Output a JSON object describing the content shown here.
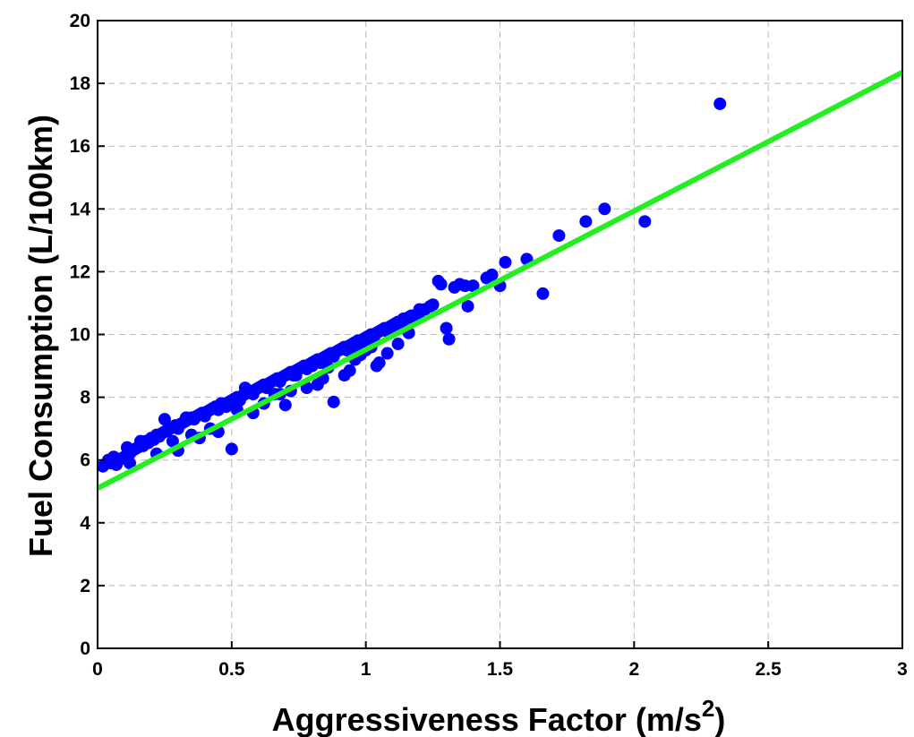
{
  "chart_data": {
    "type": "scatter",
    "title": "",
    "xlabel": "Aggressiveness Factor (m/s",
    "xlabel_superscript": "2",
    "xlabel_suffix": ")",
    "ylabel": "Fuel Consumption (L/100km)",
    "xlim": [
      0,
      3
    ],
    "ylim": [
      0,
      20
    ],
    "xticks": [
      "0",
      "0.5",
      "1",
      "1.5",
      "2",
      "2.5",
      "3"
    ],
    "yticks": [
      "0",
      "2",
      "4",
      "6",
      "8",
      "10",
      "12",
      "14",
      "16",
      "18",
      "20"
    ],
    "grid": true,
    "marker_color": "#0000ff",
    "line_color": "#22ee22",
    "fit_line": {
      "x": [
        0,
        3
      ],
      "y": [
        5.1,
        18.35
      ]
    },
    "series": [
      {
        "x": [
          0.02,
          0.04,
          0.05,
          0.06,
          0.07,
          0.08,
          0.09,
          0.1,
          0.11,
          0.12,
          0.13,
          0.14,
          0.15,
          0.16,
          0.17,
          0.18,
          0.19,
          0.2,
          0.21,
          0.22,
          0.23,
          0.24,
          0.25,
          0.26,
          0.27,
          0.28,
          0.29,
          0.3,
          0.31,
          0.32,
          0.33,
          0.34,
          0.35,
          0.36,
          0.37,
          0.38,
          0.39,
          0.4,
          0.41,
          0.42,
          0.43,
          0.44,
          0.45,
          0.46,
          0.47,
          0.48,
          0.49,
          0.5,
          0.51,
          0.52,
          0.53,
          0.54,
          0.55,
          0.56,
          0.57,
          0.58,
          0.59,
          0.6,
          0.61,
          0.62,
          0.63,
          0.64,
          0.65,
          0.66,
          0.67,
          0.68,
          0.69,
          0.7,
          0.71,
          0.72,
          0.73,
          0.74,
          0.75,
          0.76,
          0.77,
          0.78,
          0.79,
          0.8,
          0.81,
          0.82,
          0.83,
          0.84,
          0.85,
          0.86,
          0.87,
          0.88,
          0.89,
          0.9,
          0.91,
          0.92,
          0.93,
          0.94,
          0.95,
          0.96,
          0.97,
          0.98,
          0.99,
          1.0,
          1.01,
          1.02,
          1.03,
          1.04,
          1.05,
          1.06,
          1.07,
          1.08,
          1.09,
          1.1,
          1.11,
          1.12,
          1.13,
          1.14,
          1.15,
          1.16,
          1.17,
          1.18,
          1.2,
          1.22,
          1.24,
          1.25,
          1.27,
          1.28,
          1.3,
          1.31,
          1.33,
          1.35,
          1.37,
          1.38,
          1.4,
          1.45,
          1.47,
          1.5,
          1.52,
          1.6,
          1.66,
          1.72,
          1.82,
          1.89,
          2.04,
          2.32,
          0.12,
          0.16,
          0.22,
          0.25,
          0.3,
          0.33,
          0.38,
          0.42,
          0.46,
          0.5,
          0.52,
          0.55,
          0.58,
          0.62,
          0.66,
          0.7,
          0.74,
          0.78,
          0.82,
          0.86,
          0.88,
          0.92,
          0.96,
          1.0,
          1.04,
          1.08,
          1.12,
          1.16,
          1.2,
          1.05,
          0.45,
          0.35,
          0.28,
          0.68,
          0.72,
          0.8,
          0.84,
          0.94,
          0.98,
          1.02,
          1.1,
          1.14,
          0.95
        ],
        "y": [
          5.8,
          6.0,
          5.9,
          6.1,
          5.85,
          6.0,
          6.05,
          6.1,
          6.4,
          6.2,
          6.3,
          6.35,
          6.4,
          6.5,
          6.45,
          6.6,
          6.55,
          6.7,
          6.65,
          6.8,
          6.75,
          6.85,
          6.9,
          6.95,
          7.0,
          7.05,
          7.1,
          7.0,
          7.15,
          7.2,
          7.25,
          7.3,
          7.35,
          7.3,
          7.4,
          7.45,
          7.5,
          7.4,
          7.55,
          7.6,
          7.65,
          7.7,
          7.6,
          7.75,
          7.8,
          7.7,
          7.85,
          7.9,
          7.95,
          8.0,
          7.9,
          8.05,
          8.1,
          8.15,
          8.2,
          8.1,
          8.25,
          8.3,
          8.35,
          8.4,
          8.3,
          8.45,
          8.5,
          8.55,
          8.6,
          8.5,
          8.65,
          8.7,
          8.75,
          8.8,
          8.7,
          8.85,
          8.9,
          8.95,
          9.0,
          8.9,
          9.05,
          9.1,
          9.15,
          9.2,
          9.1,
          9.25,
          9.3,
          9.35,
          9.4,
          9.3,
          9.45,
          9.5,
          9.55,
          9.6,
          9.5,
          9.65,
          9.7,
          9.75,
          9.8,
          9.7,
          9.85,
          9.9,
          9.95,
          10.0,
          9.9,
          10.05,
          10.1,
          10.15,
          10.2,
          10.1,
          10.25,
          10.3,
          10.35,
          10.4,
          10.3,
          10.45,
          10.5,
          10.55,
          10.6,
          10.5,
          10.7,
          10.8,
          10.9,
          10.95,
          11.7,
          11.6,
          10.2,
          9.85,
          11.5,
          11.6,
          11.55,
          10.9,
          11.55,
          11.8,
          11.9,
          11.55,
          12.3,
          12.4,
          11.3,
          13.15,
          13.6,
          14.0,
          13.6,
          17.35,
          5.9,
          6.6,
          6.2,
          7.3,
          6.3,
          7.35,
          6.7,
          7.0,
          7.8,
          6.35,
          7.6,
          8.3,
          7.5,
          7.8,
          8.1,
          7.75,
          8.7,
          8.3,
          8.4,
          8.95,
          7.85,
          8.7,
          9.2,
          9.5,
          9.0,
          9.4,
          9.7,
          10.05,
          10.8,
          9.1,
          6.9,
          6.8,
          6.6,
          8.1,
          8.2,
          9.0,
          8.6,
          8.85,
          9.35,
          9.6,
          10.2,
          10.5,
          9.6
        ]
      }
    ]
  }
}
